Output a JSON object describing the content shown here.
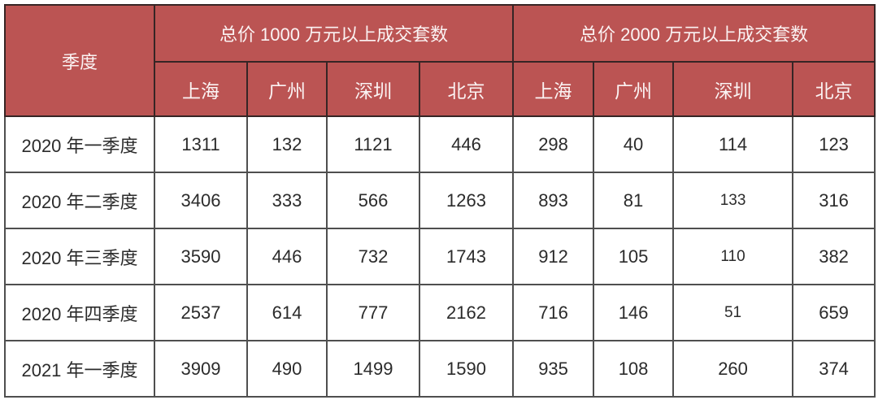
{
  "colors": {
    "header_bg": "#BB5453",
    "header_text": "#FBF3F3",
    "body_text": "#2B2B2B",
    "grid_line": "#4F4F4F",
    "outer_border": "#2B2B2B",
    "background": "#FFFFFF"
  },
  "chart_data": {
    "type": "table",
    "corner_header": "季度",
    "group_headers": [
      "总价 1000 万元以上成交套数",
      "总价 2000 万元以上成交套数"
    ],
    "city_headers": [
      "上海",
      "广州",
      "深圳",
      "北京",
      "上海",
      "广州",
      "深圳",
      "北京"
    ],
    "rows": [
      {
        "quarter": "2020 年一季度",
        "values": [
          1311,
          132,
          1121,
          446,
          298,
          40,
          114,
          123
        ]
      },
      {
        "quarter": "2020 年二季度",
        "values": [
          3406,
          333,
          566,
          1263,
          893,
          81,
          133,
          316
        ]
      },
      {
        "quarter": "2020 年三季度",
        "values": [
          3590,
          446,
          732,
          1743,
          912,
          105,
          110,
          382
        ]
      },
      {
        "quarter": "2020 年四季度",
        "values": [
          2537,
          614,
          777,
          2162,
          716,
          146,
          51,
          659
        ]
      },
      {
        "quarter": "2021 年一季度",
        "values": [
          3909,
          490,
          1499,
          1590,
          935,
          108,
          260,
          374
        ]
      }
    ]
  }
}
